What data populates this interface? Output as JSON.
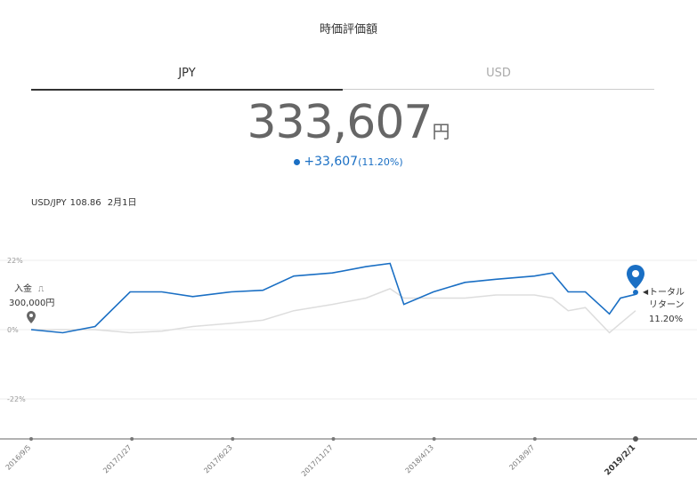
{
  "header": {
    "title": "時価評価額"
  },
  "tabs": [
    {
      "label": "JPY",
      "active": true
    },
    {
      "label": "USD",
      "active": false
    }
  ],
  "valuation": {
    "amount": "333,607",
    "unit": "円",
    "change": "+33,607",
    "change_pct": "(11.20%)"
  },
  "rate": {
    "pair": "USD/JPY",
    "value": "108.86",
    "date": "2月1日"
  },
  "colors": {
    "accent": "#1a6fc4",
    "benchmark": "#dddddd",
    "grid": "#eeeeee"
  },
  "deposit": {
    "label": "入金",
    "amount": "300,000円"
  },
  "total_return": {
    "line1": "トータル",
    "line2": "リターン",
    "value": "11.20%"
  },
  "chart_data": {
    "type": "line",
    "title": "",
    "ylim": [
      -22,
      22
    ],
    "y_ticks": [
      "22%",
      "0%",
      "-22%"
    ],
    "x_ticks": [
      "2016/9/5",
      "2017/1/27",
      "2017/6/23",
      "2017/11/17",
      "2018/4/13",
      "2018/9/7",
      "2019/2/1"
    ],
    "x": [
      "2016/9/5",
      "2016/10/21",
      "2016/12/7",
      "2017/1/27",
      "2017/3/14",
      "2017/4/28",
      "2017/6/23",
      "2017/8/8",
      "2017/9/22",
      "2017/11/17",
      "2018/1/5",
      "2018/2/9",
      "2018/3/1",
      "2018/4/13",
      "2018/5/29",
      "2018/7/13",
      "2018/9/7",
      "2018/10/3",
      "2018/10/26",
      "2018/11/20",
      "2018/12/25",
      "2019/1/10",
      "2019/2/1"
    ],
    "series": [
      {
        "values": [
          0,
          -1,
          1,
          12,
          12,
          10.5,
          12,
          12.5,
          17,
          18,
          20,
          21,
          8,
          12,
          15,
          16,
          17,
          18,
          12,
          12,
          5,
          10,
          11.2
        ]
      },
      {
        "values": [
          0,
          0,
          0,
          -1,
          -0.5,
          1,
          2,
          3,
          6,
          8,
          10,
          13,
          10,
          10,
          10,
          11,
          11,
          10,
          6,
          7,
          -1,
          2,
          6
        ]
      }
    ]
  }
}
